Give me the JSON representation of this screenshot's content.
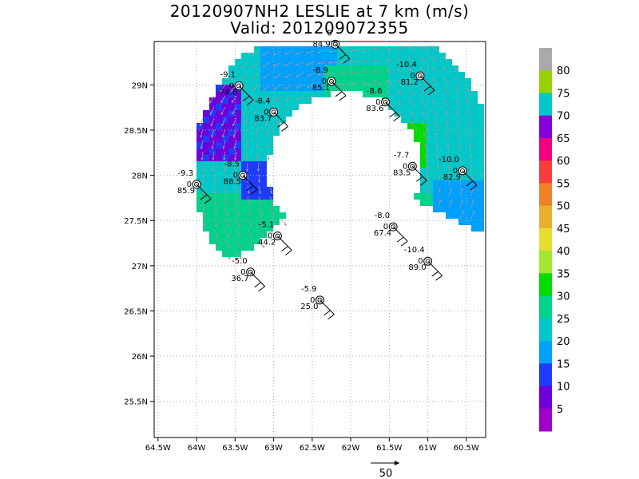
{
  "title_line1": "20120907NH2 LESLIE at 7 km (m/s)",
  "title_line2": "Valid: 201209072355",
  "chart_data": {
    "type": "heatmap",
    "title": "20120907NH2 LESLIE at 7 km (m/s)",
    "subtitle": "Valid: 201209072355",
    "x_tick_labels": [
      "64.5W",
      "64W",
      "63.5W",
      "63W",
      "62.5W",
      "62W",
      "61.5W",
      "61W",
      "60.5W"
    ],
    "x_tick_values": [
      -64.5,
      -64,
      -63.5,
      -63,
      -62.5,
      -62,
      -61.5,
      -61,
      -60.5
    ],
    "y_tick_labels": [
      "25.5N",
      "26N",
      "26.5N",
      "27N",
      "27.5N",
      "28N",
      "28.5N",
      "29N"
    ],
    "y_tick_values": [
      25.5,
      26,
      26.5,
      27,
      27.5,
      28,
      28.5,
      29
    ],
    "xlim": [
      -64.55,
      -60.25
    ],
    "ylim": [
      25.1,
      29.48
    ],
    "grid": true,
    "colorbar": {
      "labels": [
        "5",
        "10",
        "15",
        "20",
        "25",
        "30",
        "35",
        "40",
        "45",
        "50",
        "55",
        "60",
        "65",
        "70",
        "75",
        "80"
      ],
      "colors": [
        "#a000c8",
        "#6e00dc",
        "#1e3cff",
        "#00a0ff",
        "#00c8c8",
        "#00d28c",
        "#00dc00",
        "#a0e632",
        "#e6dc32",
        "#e6af2d",
        "#f08228",
        "#fa3c3c",
        "#f00082",
        "#8200dc",
        "#00c8c8",
        "#96d200",
        "#aaaaaa"
      ]
    },
    "vector_reference": {
      "label": "50",
      "units": "m/s"
    },
    "stations": [
      {
        "top": "0",
        "vals": [
          "84.9"
        ],
        "lon": -62.2,
        "lat": 29.45
      },
      {
        "top": "-9.1",
        "vals": [
          "0",
          "74.8"
        ],
        "lon": -63.45,
        "lat": 28.99
      },
      {
        "top": "-8.9",
        "vals": [
          "0",
          "85.1"
        ],
        "lon": -62.25,
        "lat": 29.04
      },
      {
        "top": "-10.4",
        "vals": [
          "0",
          "81.2"
        ],
        "lon": -61.1,
        "lat": 29.1
      },
      {
        "top": "-8.4",
        "vals": [
          "0",
          "83.7"
        ],
        "lon": -63.0,
        "lat": 28.7
      },
      {
        "top": "-8.6",
        "vals": [
          "0",
          "83.6"
        ],
        "lon": -61.55,
        "lat": 28.81
      },
      {
        "top": "-8.5",
        "vals": [
          "0",
          "88.5"
        ],
        "lon": -63.4,
        "lat": 28.0
      },
      {
        "top": "-9.3",
        "vals": [
          "0",
          "85.9"
        ],
        "lon": -64.0,
        "lat": 27.9
      },
      {
        "top": "-7.7",
        "vals": [
          "0",
          "83.5"
        ],
        "lon": -61.2,
        "lat": 28.1
      },
      {
        "top": "-10.0",
        "vals": [
          "0",
          "82.9"
        ],
        "lon": -60.55,
        "lat": 28.05
      },
      {
        "top": "-5.1",
        "vals": [
          "0",
          "44.2"
        ],
        "lon": -62.95,
        "lat": 27.33
      },
      {
        "top": "-8.0",
        "vals": [
          "0",
          "67.4"
        ],
        "lon": -61.45,
        "lat": 27.43
      },
      {
        "top": "-10.4",
        "vals": [
          "0",
          "89.0"
        ],
        "lon": -61.0,
        "lat": 27.05
      },
      {
        "top": "-5.0",
        "vals": [
          "0",
          "36.7"
        ],
        "lon": -63.3,
        "lat": 26.93
      },
      {
        "top": "-5.9",
        "vals": [
          "0",
          "25.0"
        ],
        "lon": -62.4,
        "lat": 26.62
      }
    ]
  }
}
